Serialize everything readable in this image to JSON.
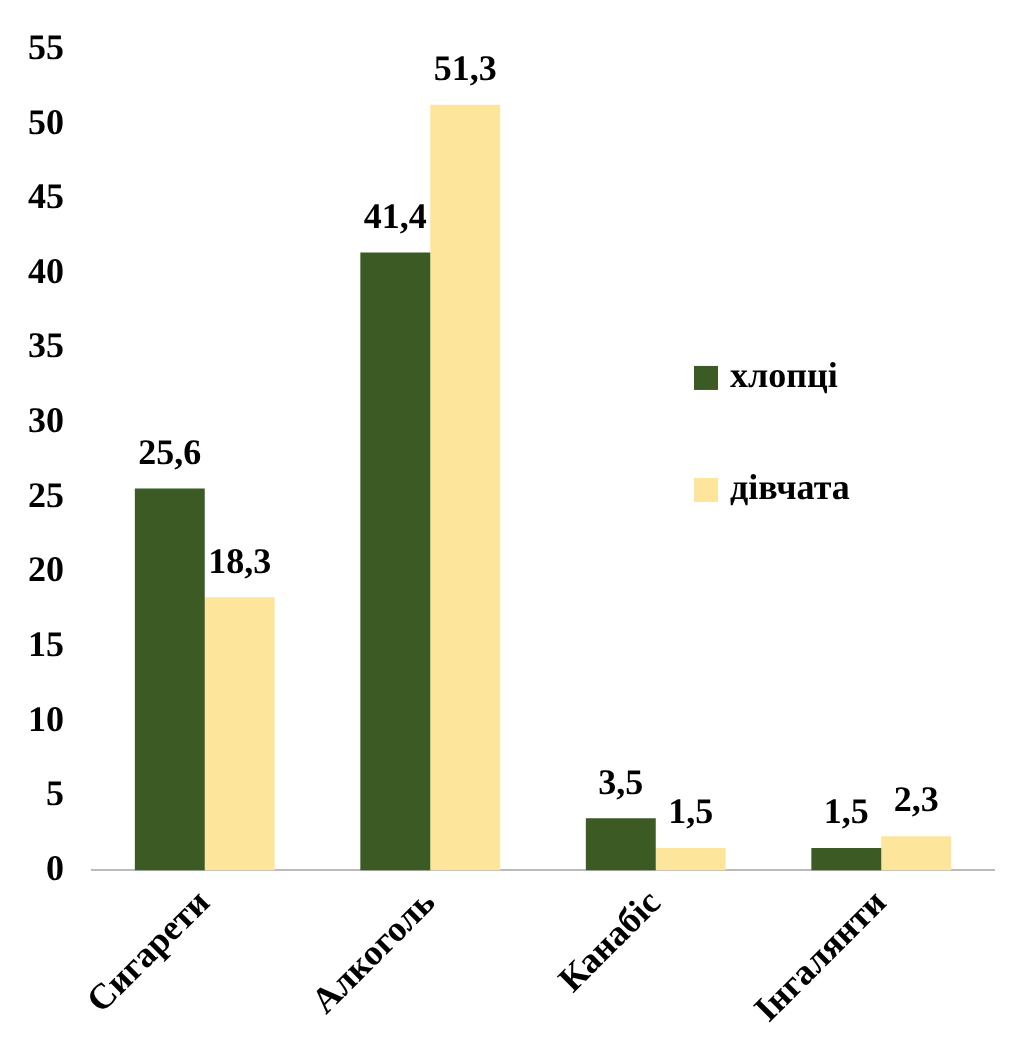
{
  "chart_data": {
    "type": "bar",
    "categories": [
      "Сигарети",
      "Алкоголь",
      "Канабіс",
      "Інгалянти"
    ],
    "series": [
      {
        "name": "хлопці",
        "color": "#3b5a24",
        "values": [
          25.6,
          41.4,
          3.5,
          1.5
        ],
        "value_labels": [
          "25,6",
          "41,4",
          "3,5",
          "1,5"
        ]
      },
      {
        "name": "дівчата",
        "color": "#fde59c",
        "values": [
          18.3,
          51.3,
          1.5,
          2.3
        ],
        "value_labels": [
          "18,3",
          "51,3",
          "1,5",
          "2,3"
        ]
      }
    ],
    "ylim": [
      0,
      55
    ],
    "yticks": [
      0,
      5,
      10,
      15,
      20,
      25,
      30,
      35,
      40,
      45,
      50,
      55
    ],
    "grid": false,
    "legend": "right"
  }
}
